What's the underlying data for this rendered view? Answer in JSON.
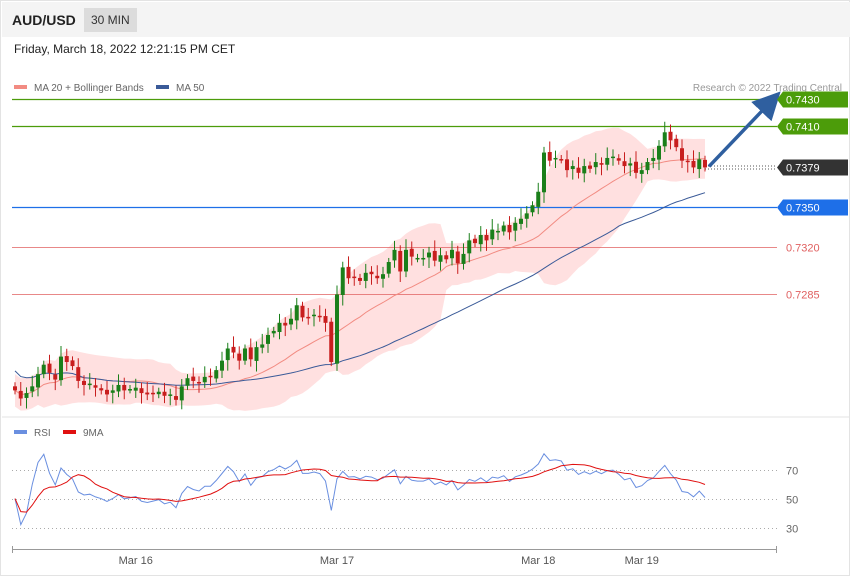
{
  "header": {
    "symbol": "AUD/USD",
    "timeframe": "30 MIN",
    "datetime": "Friday, March 18, 2022 12:21:15 PM CET",
    "copyright": "Research © 2022 Trading Central"
  },
  "colors": {
    "candle_up": "#1a7f1a",
    "candle_down": "#c81e1e",
    "ma20": "#f28b82",
    "bollinger_fill": "#ffd6d6",
    "ma50": "#3a5a98",
    "resistance": "#4c9c0a",
    "current": "#333333",
    "pivot": "#1e6fe8",
    "support": "#e06060",
    "rsi": "#6a8fe0",
    "rsi_ma": "#e01010",
    "arrow": "#2f5f9f"
  },
  "chart_data": [
    {
      "type": "candlestick",
      "name": "price",
      "legend": [
        {
          "label": "MA 20 + Bollinger Bands",
          "color": "#f28b82"
        },
        {
          "label": "MA 50",
          "color": "#3a5a98"
        }
      ],
      "ylim": [
        0.7198,
        0.744
      ],
      "levels": [
        {
          "label": "0.7430",
          "value": 0.743,
          "kind": "resistance"
        },
        {
          "label": "0.7410",
          "value": 0.741,
          "kind": "resistance"
        },
        {
          "label": "0.7379",
          "value": 0.7379,
          "kind": "current"
        },
        {
          "label": "0.7350",
          "value": 0.735,
          "kind": "pivot"
        },
        {
          "label": "0.7320",
          "value": 0.732,
          "kind": "support"
        },
        {
          "label": "0.7285",
          "value": 0.7285,
          "kind": "support"
        }
      ],
      "forecast": {
        "from": 0.7379,
        "to": 0.743
      },
      "close": [
        0.7214,
        0.7208,
        0.7212,
        0.7217,
        0.7226,
        0.7233,
        0.7227,
        0.7222,
        0.7239,
        0.7235,
        0.7232,
        0.7221,
        0.7218,
        0.7219,
        0.7216,
        0.7214,
        0.7211,
        0.7214,
        0.7218,
        0.7214,
        0.7215,
        0.7216,
        0.7212,
        0.7211,
        0.7212,
        0.7213,
        0.721,
        0.7211,
        0.7207,
        0.7217,
        0.7223,
        0.7221,
        0.722,
        0.7224,
        0.7224,
        0.7229,
        0.7236,
        0.7245,
        0.7242,
        0.7236,
        0.7245,
        0.7237,
        0.7246,
        0.7248,
        0.7255,
        0.7258,
        0.7264,
        0.7262,
        0.7267,
        0.7277,
        0.7268,
        0.7268,
        0.727,
        0.7269,
        0.7264,
        0.7235,
        0.7285,
        0.7305,
        0.7297,
        0.7298,
        0.7295,
        0.7301,
        0.73,
        0.7297,
        0.73,
        0.7309,
        0.7318,
        0.7302,
        0.7318,
        0.7313,
        0.7312,
        0.7312,
        0.7316,
        0.731,
        0.7314,
        0.7311,
        0.7318,
        0.7308,
        0.7315,
        0.7325,
        0.7323,
        0.7329,
        0.7325,
        0.7333,
        0.7332,
        0.7336,
        0.7331,
        0.7338,
        0.7341,
        0.7345,
        0.7351,
        0.7361,
        0.739,
        0.7384,
        0.7386,
        0.7385,
        0.7377,
        0.738,
        0.7375,
        0.738,
        0.7378,
        0.7383,
        0.7381,
        0.7386,
        0.7387,
        0.7384,
        0.738,
        0.7382,
        0.7375,
        0.7377,
        0.7383,
        0.7386,
        0.7395,
        0.7405,
        0.7399,
        0.7394,
        0.7384,
        0.7383,
        0.7379,
        0.7385,
        0.7379
      ]
    },
    {
      "type": "line",
      "name": "rsi",
      "legend": [
        {
          "label": "RSI",
          "color": "#6a8fe0"
        },
        {
          "label": "9MA",
          "color": "#e01010"
        }
      ],
      "ylim": [
        20,
        85
      ],
      "yticks": [
        {
          "label": "70",
          "value": 70
        },
        {
          "label": "50",
          "value": 50
        },
        {
          "label": "30",
          "value": 30
        }
      ],
      "xticks": [
        {
          "label": "Mar 16",
          "index": 21
        },
        {
          "label": "Mar 17",
          "index": 56
        },
        {
          "label": "Mar 18",
          "index": 91
        },
        {
          "label": "Mar 19",
          "index": 109
        }
      ]
    }
  ]
}
